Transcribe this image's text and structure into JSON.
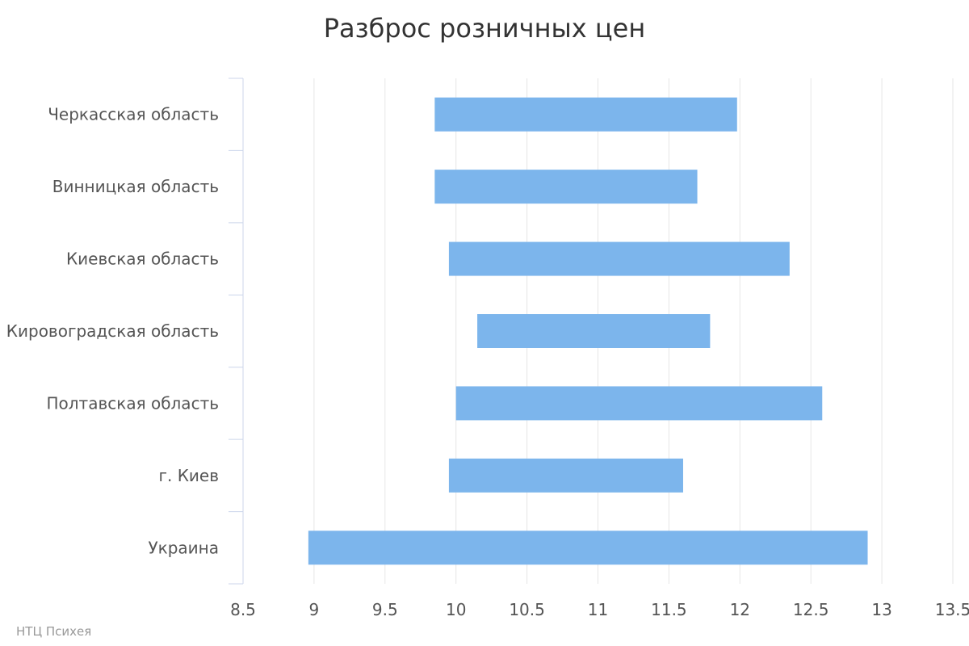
{
  "chart_data": {
    "type": "bar",
    "orientation": "horizontal",
    "subtype": "columnrange",
    "title": "Разброс розничных цен",
    "xlabel": "",
    "ylabel": "",
    "categories": [
      "Черкасская область",
      "Винницкая область",
      "Киевская область",
      "Кировоградская область",
      "Полтавская область",
      "г. Киев",
      "Украина"
    ],
    "series": [
      {
        "ranges": [
          [
            9.85,
            11.98
          ],
          [
            9.85,
            11.7
          ],
          [
            9.95,
            12.35
          ],
          [
            10.15,
            11.79
          ],
          [
            10.0,
            12.58
          ],
          [
            9.95,
            11.6
          ],
          [
            8.96,
            12.9
          ]
        ],
        "color": "#7cb5ec"
      }
    ],
    "xlim": [
      8.5,
      13.5
    ],
    "ticks": [
      "8.5",
      "9",
      "9.5",
      "10",
      "10.5",
      "11",
      "11.5",
      "12",
      "12.5",
      "13",
      "13.5"
    ],
    "grid": true,
    "legend": "none"
  },
  "credit": "НТЦ Психея",
  "colors": {
    "bar": "#7cb5ec",
    "grid": "#e6e6e6",
    "axis": "#ccd6eb"
  }
}
